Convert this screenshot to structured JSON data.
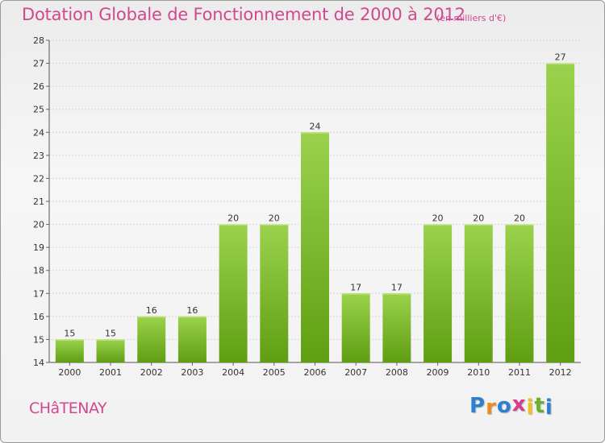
{
  "title": "Dotation Globale de Fonctionnement de 2000 à 2012",
  "subtitle": "(en milliers d'€)",
  "commune": "CHâTENAY",
  "logo": {
    "letters": [
      "P",
      "r",
      "o",
      "x",
      "i",
      "t",
      "i"
    ],
    "colors": [
      "#2f7fd0",
      "#f08a1c",
      "#2f7fd0",
      "#d93a8c",
      "#f0c020",
      "#67b02b",
      "#2f7fd0"
    ]
  },
  "colors": {
    "bar_top": "#9bd24d",
    "bar_bottom": "#5f9e12",
    "title": "#d0488e",
    "grid": "#d6d6d6"
  },
  "chart_data": {
    "type": "bar",
    "categories": [
      "2000",
      "2001",
      "2002",
      "2003",
      "2004",
      "2005",
      "2006",
      "2007",
      "2008",
      "2009",
      "2010",
      "2011",
      "2012"
    ],
    "values": [
      15,
      15,
      16,
      16,
      20,
      20,
      24,
      17,
      17,
      20,
      20,
      20,
      27
    ],
    "title": "Dotation Globale de Fonctionnement de 2000 à 2012",
    "subtitle": "(en milliers d'€)",
    "xlabel": "",
    "ylabel": "",
    "ylim": [
      14,
      28
    ],
    "yticks": [
      14,
      15,
      16,
      17,
      18,
      19,
      20,
      21,
      22,
      23,
      24,
      25,
      26,
      27,
      28
    ],
    "grid": true,
    "data_labels": true
  }
}
